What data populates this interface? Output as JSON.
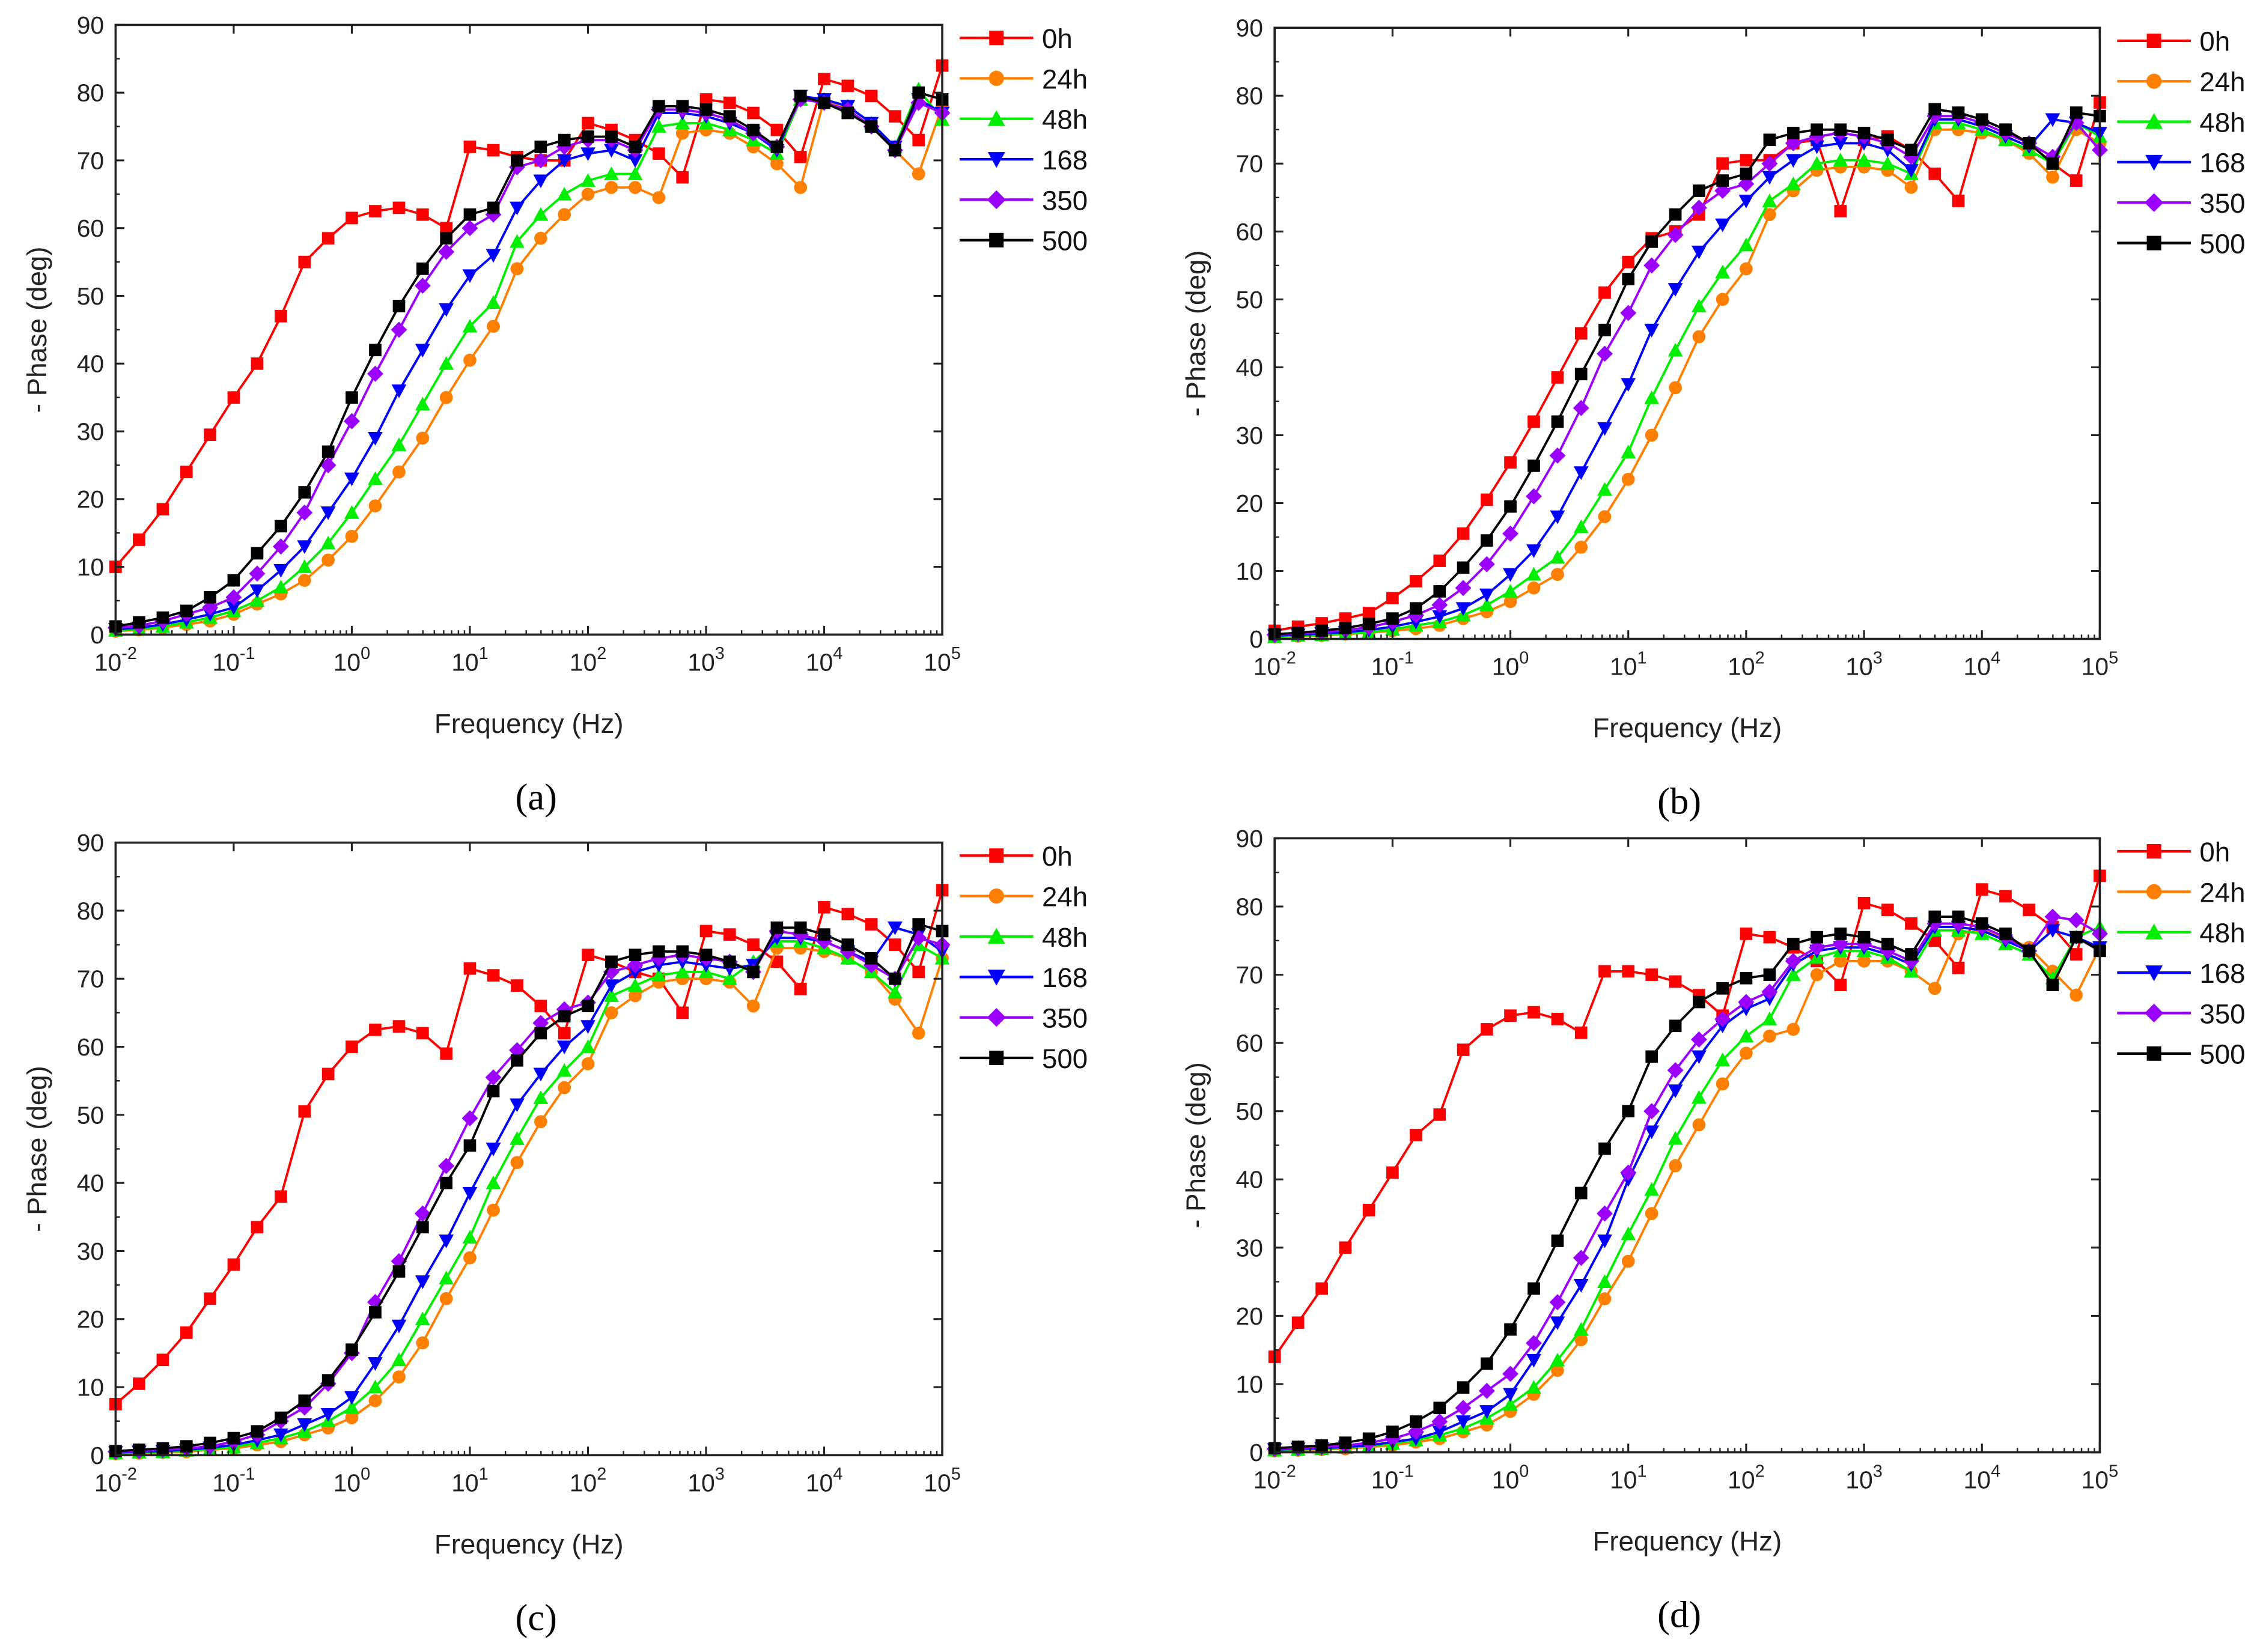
{
  "chart_data": {
    "type": "line",
    "xscale": "log",
    "x": [
      0.01,
      0.0158,
      0.0251,
      0.0398,
      0.0631,
      0.1,
      0.158,
      0.251,
      0.398,
      0.631,
      1,
      1.58,
      2.51,
      3.98,
      6.31,
      10,
      15.8,
      25.1,
      39.8,
      63.1,
      100,
      158,
      251,
      398,
      631,
      1000,
      1585,
      2512,
      3981,
      6310,
      10000,
      15849,
      25119,
      39811,
      63096,
      100000
    ],
    "xlim": [
      0.01,
      100000
    ],
    "ylim": [
      0,
      90
    ],
    "xtick_base": "10",
    "xtick_exponents": [
      "-2",
      "-1",
      "0",
      "1",
      "2",
      "3",
      "4",
      "5"
    ],
    "yticks": [
      "0",
      "10",
      "20",
      "30",
      "40",
      "50",
      "60",
      "70",
      "80",
      "90"
    ],
    "xlabel": "Frequency (Hz)",
    "ylabel": "- Phase (deg)",
    "legend_position": "right",
    "series_styles": [
      {
        "name": "0h",
        "color": "#ff0000",
        "marker": "square"
      },
      {
        "name": "24h",
        "color": "#ff8000",
        "marker": "circle"
      },
      {
        "name": "48h",
        "color": "#00ee00",
        "marker": "triangle-up"
      },
      {
        "name": "168",
        "color": "#0000ff",
        "marker": "triangle-down"
      },
      {
        "name": "350",
        "color": "#9b00ff",
        "marker": "diamond"
      },
      {
        "name": "500",
        "color": "#000000",
        "marker": "square"
      }
    ],
    "panels": [
      {
        "label": "(a)",
        "letter": "a",
        "series": [
          [
            10,
            14,
            18.5,
            24,
            29.5,
            35,
            40,
            47,
            55,
            58.5,
            61.5,
            62.5,
            63,
            62,
            60,
            72,
            71.5,
            70.5,
            70,
            70,
            75.5,
            74.5,
            73,
            71,
            67.5,
            79,
            78.5,
            77,
            74.5,
            70.5,
            82,
            81,
            79.5,
            76.5,
            73,
            84
          ],
          [
            0.5,
            0.7,
            1,
            1.5,
            2,
            3,
            4.5,
            6,
            8,
            11,
            14.5,
            19,
            24,
            29,
            35,
            40.5,
            45.5,
            54,
            58.5,
            62,
            65,
            66,
            66,
            64.5,
            74,
            74.5,
            74,
            72,
            69.5,
            66,
            79,
            77.5,
            75,
            71.5,
            68,
            78
          ],
          [
            0.6,
            0.8,
            1.2,
            1.8,
            2.5,
            3.5,
            5,
            7,
            10,
            13.5,
            18,
            23,
            28,
            34,
            40,
            45.5,
            49,
            58,
            62,
            65,
            67,
            68,
            68,
            75,
            75.5,
            75.5,
            74.5,
            73,
            71,
            79,
            79,
            78,
            75.5,
            72,
            80.5,
            76
          ],
          [
            0.8,
            1,
            1.5,
            2.2,
            3,
            4,
            6.5,
            9.5,
            13,
            18,
            23,
            29,
            36,
            42,
            48,
            53,
            56,
            63,
            67,
            70,
            71,
            71.5,
            70,
            77,
            77,
            76.5,
            75.5,
            74,
            71.5,
            79.5,
            79,
            78,
            75.5,
            72,
            79,
            77
          ],
          [
            1,
            1.3,
            2,
            3,
            4,
            5.5,
            9,
            13,
            18,
            25,
            31.5,
            38.5,
            45,
            51.5,
            56.5,
            60,
            62,
            69,
            70,
            72,
            73,
            73,
            71.5,
            77.5,
            77.5,
            77,
            76,
            74,
            72,
            79,
            78.5,
            77.5,
            75,
            71.5,
            78.5,
            77
          ],
          [
            1.2,
            1.8,
            2.5,
            3.5,
            5.5,
            8,
            12,
            16,
            21,
            27,
            35,
            42,
            48.5,
            54,
            58.5,
            62,
            63,
            70,
            72,
            73,
            73.5,
            73.5,
            72,
            78,
            78,
            77.5,
            76.5,
            74.5,
            72,
            79.5,
            78.5,
            77,
            75,
            71.5,
            80,
            79
          ]
        ]
      },
      {
        "label": "(b)",
        "letter": "b",
        "series": [
          [
            1.2,
            1.8,
            2.3,
            3,
            3.8,
            6,
            8.5,
            11.5,
            15.5,
            20.5,
            26,
            32,
            38.5,
            45,
            51,
            55.5,
            59,
            60,
            62.5,
            70,
            70.5,
            70.5,
            73,
            73.5,
            63,
            73.5,
            74,
            72,
            68.5,
            64.5,
            76.5,
            75,
            73,
            70,
            67.5,
            79
          ],
          [
            0.3,
            0.4,
            0.5,
            0.7,
            0.9,
            1.2,
            1.5,
            2,
            3,
            4,
            5.5,
            7.5,
            9.5,
            13.5,
            18,
            23.5,
            30,
            37,
            44.5,
            50,
            54.5,
            62.5,
            66,
            69,
            69.5,
            69.5,
            69,
            66.5,
            75,
            75,
            74.5,
            73.5,
            71.5,
            68,
            75,
            73
          ],
          [
            0.3,
            0.5,
            0.6,
            0.8,
            1,
            1.4,
            2,
            2.5,
            3.5,
            5,
            7,
            9.5,
            12,
            16.5,
            22,
            27.5,
            35.5,
            42.5,
            49,
            54,
            58,
            64.5,
            67,
            70,
            70.5,
            70.5,
            70,
            68.5,
            76,
            76,
            75,
            73.5,
            72,
            70,
            76,
            74
          ],
          [
            0.5,
            0.6,
            0.8,
            1,
            1.3,
            1.8,
            2.5,
            3.3,
            4.5,
            6.5,
            9.5,
            13,
            18,
            24.5,
            31,
            37.5,
            45.5,
            51.5,
            57,
            61,
            64.5,
            68,
            70.5,
            72.5,
            73,
            73,
            72,
            69,
            76.5,
            76.5,
            75.5,
            74,
            72.5,
            76.5,
            76,
            74.5
          ],
          [
            0.6,
            0.8,
            1,
            1.3,
            1.7,
            2.5,
            3.5,
            5,
            7.5,
            11,
            15.5,
            21,
            27,
            34,
            42,
            48,
            55,
            59.5,
            63.5,
            66,
            67,
            70,
            73,
            74,
            74.5,
            74,
            73,
            71,
            77,
            77,
            76,
            74.5,
            73,
            71,
            76,
            72
          ],
          [
            0.7,
            0.9,
            1.2,
            1.6,
            2.2,
            3,
            4.5,
            7,
            10.5,
            14.5,
            19.5,
            25.5,
            32,
            39,
            45.5,
            53,
            58.5,
            62.5,
            66,
            67.5,
            68.5,
            73.5,
            74.5,
            75,
            75,
            74.5,
            73.5,
            72,
            78,
            77.5,
            76.5,
            75,
            73,
            70,
            77.5,
            77
          ]
        ]
      },
      {
        "label": "(c)",
        "letter": "c",
        "series": [
          [
            7.5,
            10.5,
            14,
            18,
            23,
            28,
            33.5,
            38,
            50.5,
            56,
            60,
            62.5,
            63,
            62,
            59,
            71.5,
            70.5,
            69,
            66,
            62,
            73.5,
            72.5,
            71,
            70,
            65,
            77,
            76.5,
            75,
            72.5,
            68.5,
            80.5,
            79.5,
            78,
            75,
            71,
            83
          ],
          [
            0.2,
            0.3,
            0.4,
            0.5,
            0.8,
            1,
            1.5,
            2,
            3,
            4,
            5.5,
            8,
            11.5,
            16.5,
            23,
            29,
            36,
            43,
            49,
            54,
            57.5,
            65,
            67.5,
            69.5,
            70,
            70,
            69.5,
            66,
            74.5,
            74.5,
            74,
            73,
            71,
            67,
            62,
            73
          ],
          [
            0.3,
            0.4,
            0.5,
            0.7,
            0.9,
            1.2,
            1.8,
            2.5,
            3.5,
            5,
            7,
            10,
            14,
            20,
            26,
            32,
            40,
            46.5,
            52.5,
            56.5,
            60,
            67.5,
            69,
            70.5,
            71,
            71,
            70,
            72.5,
            75.5,
            75.5,
            74.5,
            73,
            71,
            68,
            75,
            73
          ],
          [
            0.4,
            0.5,
            0.6,
            0.8,
            1.1,
            1.5,
            2.2,
            3,
            4.5,
            6,
            8.5,
            13.5,
            19,
            25.5,
            31.5,
            38.5,
            45,
            51.5,
            56,
            60,
            63,
            69,
            71,
            72,
            72.5,
            72,
            71.5,
            72,
            76,
            76,
            75.5,
            74,
            72.5,
            77.5,
            76.5,
            74
          ],
          [
            0.5,
            0.6,
            0.8,
            1,
            1.3,
            2,
            3,
            5,
            7,
            10.5,
            15,
            22.5,
            28.5,
            35.5,
            42.5,
            49.5,
            55.5,
            59.5,
            63.5,
            65.5,
            66.5,
            71,
            72,
            73,
            73.5,
            73,
            72.5,
            71,
            77,
            76.5,
            75.5,
            74,
            72,
            70,
            76,
            75
          ],
          [
            0.6,
            0.8,
            1,
            1.3,
            1.8,
            2.5,
            3.5,
            5.5,
            8,
            11,
            15.5,
            21,
            27,
            33.5,
            40,
            45.5,
            53.5,
            58,
            62,
            64.5,
            66,
            72.5,
            73.5,
            74,
            74,
            73.5,
            72.5,
            71,
            77.5,
            77.5,
            76.5,
            75,
            73,
            70,
            78,
            77
          ]
        ]
      },
      {
        "label": "(d)",
        "letter": "d",
        "series": [
          [
            14,
            19,
            24,
            30,
            35.5,
            41,
            46.5,
            49.5,
            59,
            62,
            64,
            64.5,
            63.5,
            61.5,
            70.5,
            70.5,
            70,
            69,
            67,
            64,
            76,
            75.5,
            74,
            72,
            68.5,
            80.5,
            79.5,
            77.5,
            75,
            71,
            82.5,
            81.5,
            79.5,
            77,
            73,
            84.5
          ],
          [
            0.2,
            0.3,
            0.4,
            0.5,
            0.8,
            1,
            1.5,
            2,
            3,
            4,
            6,
            8.5,
            12,
            16.5,
            22.5,
            28,
            35,
            42,
            48,
            54,
            58.5,
            61,
            62,
            70,
            72,
            72,
            72,
            70.5,
            68,
            76,
            76.5,
            75.5,
            74,
            70.5,
            67,
            74
          ],
          [
            0.3,
            0.4,
            0.5,
            0.7,
            0.9,
            1.3,
            1.8,
            2.5,
            3.5,
            5,
            7,
            9.5,
            13.5,
            18,
            25,
            32,
            38.5,
            46,
            52,
            57.5,
            61,
            63.5,
            70,
            72.5,
            73.5,
            73.5,
            72.5,
            70.5,
            76.5,
            76.5,
            76,
            74.5,
            73,
            69.5,
            75.5,
            77
          ],
          [
            0.4,
            0.5,
            0.6,
            0.8,
            1,
            1.5,
            2,
            3,
            4.5,
            6,
            8.5,
            13.5,
            19,
            24.5,
            31,
            40,
            47,
            53,
            58,
            62.5,
            65,
            66.5,
            71.5,
            73.5,
            74,
            74,
            73,
            71.5,
            77,
            77,
            76.5,
            75,
            73.5,
            76.5,
            75.5,
            74
          ],
          [
            0.5,
            0.6,
            0.8,
            1,
            1.4,
            2,
            3,
            4.5,
            6.5,
            9,
            11.5,
            16,
            22,
            28.5,
            35,
            41,
            50,
            56,
            60.5,
            63.5,
            66,
            67.5,
            72,
            74,
            74.5,
            74.5,
            73.5,
            72,
            77.5,
            77.5,
            77,
            75.5,
            73.5,
            78.5,
            78,
            76
          ],
          [
            0.6,
            0.8,
            1,
            1.4,
            2,
            3,
            4.5,
            6.5,
            9.5,
            13,
            18,
            24,
            31,
            38,
            44.5,
            50,
            58,
            62.5,
            66,
            68,
            69.5,
            70,
            74.5,
            75.5,
            76,
            75.5,
            74.5,
            73,
            78.5,
            78.5,
            77.5,
            76,
            73.5,
            68.5,
            75.5,
            73.5
          ]
        ]
      }
    ]
  }
}
